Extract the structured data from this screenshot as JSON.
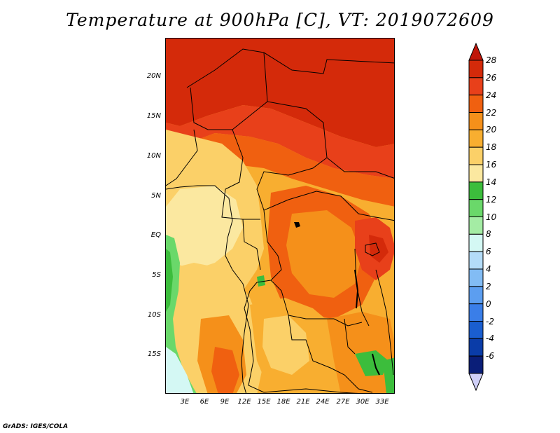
{
  "title": "Temperature at 900hPa [C], VT: 2019072609",
  "credit": "GrADS: IGES/COLA",
  "map": {
    "lat_ticks": [
      "20N",
      "15N",
      "10N",
      "5N",
      "EQ",
      "5S",
      "10S",
      "15S"
    ],
    "lon_ticks": [
      "3E",
      "6E",
      "9E",
      "12E",
      "15E",
      "18E",
      "21E",
      "24E",
      "27E",
      "30E",
      "33E"
    ]
  },
  "colorbar": {
    "levels": [
      "28",
      "26",
      "24",
      "22",
      "20",
      "18",
      "16",
      "14",
      "12",
      "10",
      "8",
      "6",
      "4",
      "2",
      "0",
      "-2",
      "-4",
      "-6"
    ],
    "colors": [
      "#d42a0a",
      "#e8401a",
      "#f06010",
      "#f5901a",
      "#f8ae30",
      "#fbd068",
      "#fbe8a0",
      "#3cbd3c",
      "#6ad86a",
      "#a4eca4",
      "#d4f8f4",
      "#b4dcf8",
      "#82bcf4",
      "#5c9ef0",
      "#3a7ee8",
      "#1a5ed0",
      "#0a3ca8",
      "#0a1e78"
    ],
    "top_triangle_color": "#c0160a",
    "bottom_triangle_color": "#d0d0f8"
  },
  "colors": {
    "hot": "#d42a0a",
    "warm_orange": "#f06010",
    "orange": "#f5901a",
    "light_orange": "#f8ae30",
    "yellow": "#fbd068",
    "pale_yellow": "#fbe8a0",
    "green": "#3cbd3c",
    "light_green": "#6ad86a",
    "ocean_cool": "#d4f8f4"
  }
}
